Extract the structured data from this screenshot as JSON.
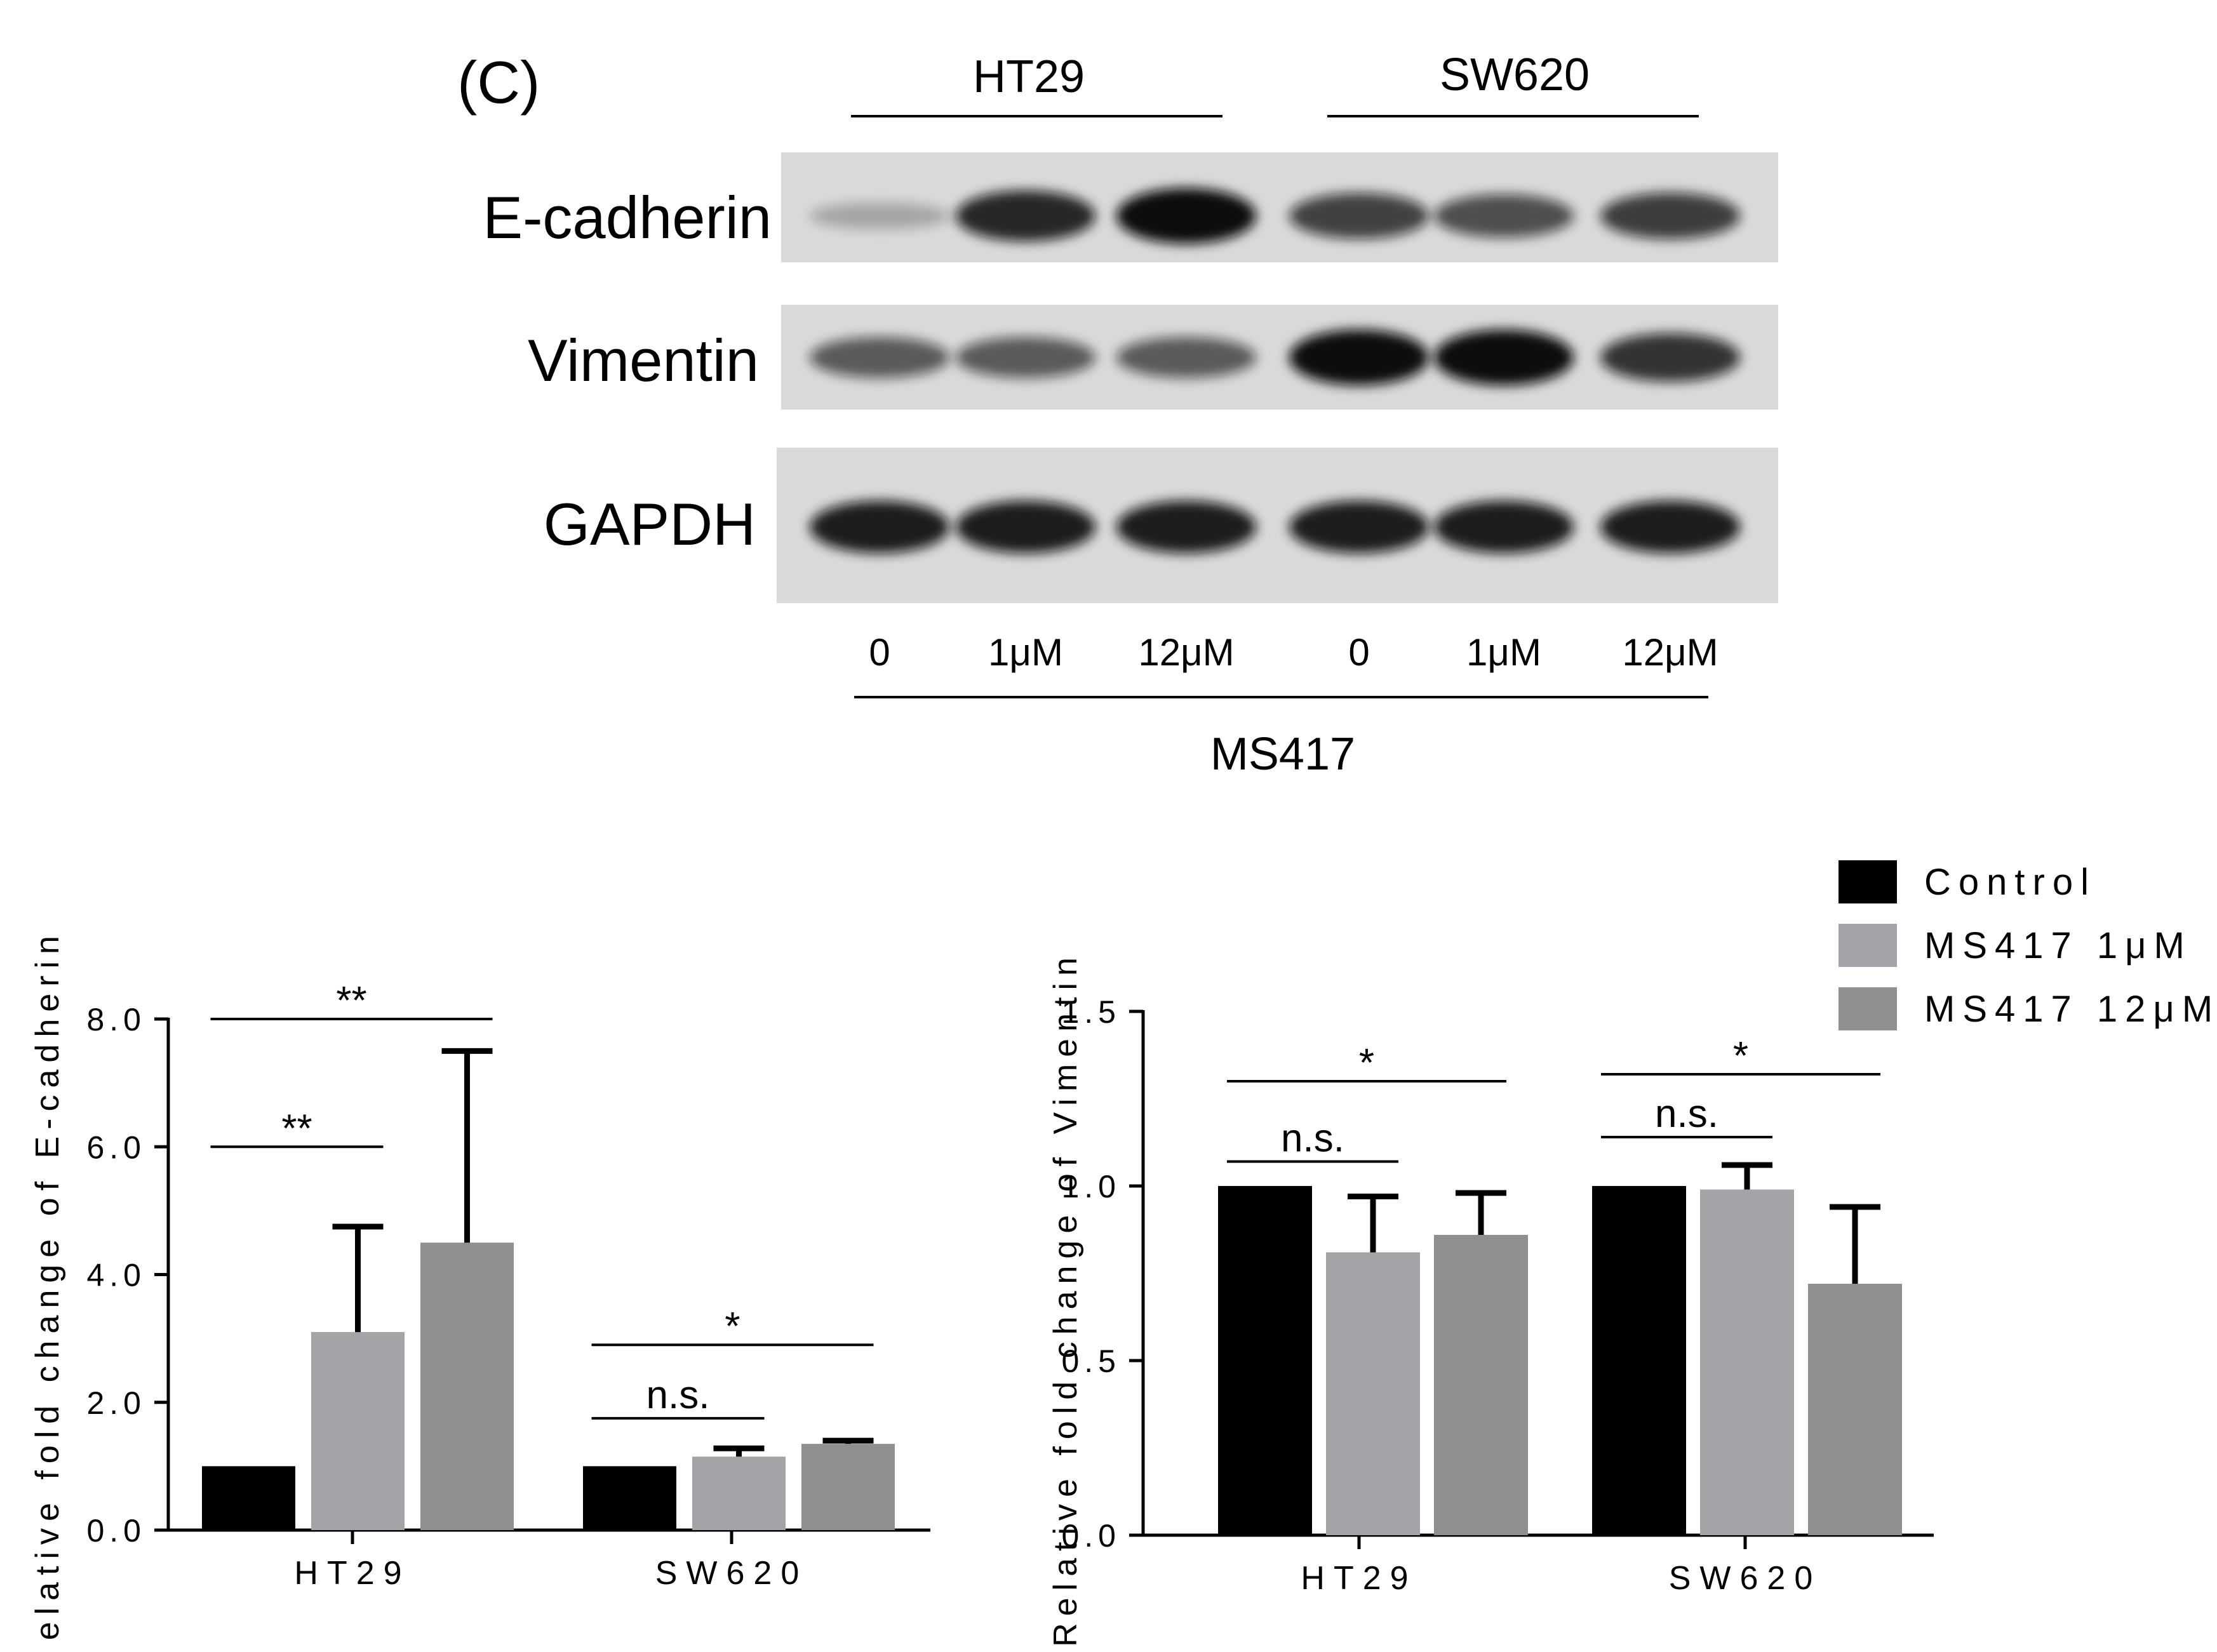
{
  "panel_label": "(C)",
  "blot": {
    "cell_lines": [
      "HT29",
      "SW620"
    ],
    "rows": [
      {
        "name": "E-cadherin",
        "bands": [
          0.12,
          0.85,
          1.0,
          0.7,
          0.62,
          0.72
        ]
      },
      {
        "name": "Vimentin",
        "bands": [
          0.55,
          0.55,
          0.55,
          1.0,
          1.0,
          0.78
        ]
      },
      {
        "name": "GAPDH",
        "bands": [
          0.9,
          0.9,
          0.9,
          0.9,
          0.9,
          0.9
        ]
      }
    ],
    "lanes": [
      "0",
      "1μM",
      "12μM",
      "0",
      "1μM",
      "12μM"
    ],
    "treatment": "MS417"
  },
  "legend": [
    {
      "label": "Control",
      "color": "#000000"
    },
    {
      "label": "MS417 1μM",
      "color": "#a4a4a8"
    },
    {
      "label": "MS417 12μM",
      "color": "#8f8f92"
    }
  ],
  "chart_data": [
    {
      "type": "bar",
      "ylabel": "Relative fold change of E-cadherin",
      "categories": [
        "HT29",
        "SW620"
      ],
      "ylim": [
        0,
        8
      ],
      "yticks": [
        "0.0",
        "2.0",
        "4.0",
        "6.0",
        "8.0"
      ],
      "series": [
        {
          "name": "Control",
          "values": [
            1.0,
            1.0
          ],
          "errors": [
            0,
            0
          ]
        },
        {
          "name": "MS417 1μM",
          "values": [
            3.1,
            1.15
          ],
          "errors": [
            1.65,
            0.13
          ]
        },
        {
          "name": "MS417 12μM",
          "values": [
            4.5,
            1.35
          ],
          "errors": [
            3.0,
            0.05
          ]
        }
      ],
      "significance": [
        {
          "category": "HT29",
          "from": 0,
          "to": 1,
          "level": 6.0,
          "label": "**"
        },
        {
          "category": "HT29",
          "from": 0,
          "to": 2,
          "level": 8.0,
          "label": "**"
        },
        {
          "category": "SW620",
          "from": 0,
          "to": 1,
          "level": 1.75,
          "label": "n.s."
        },
        {
          "category": "SW620",
          "from": 0,
          "to": 2,
          "level": 2.9,
          "label": "*"
        }
      ]
    },
    {
      "type": "bar",
      "ylabel": "Relative fold change of Vimentin",
      "categories": [
        "HT29",
        "SW620"
      ],
      "ylim": [
        0,
        1.5
      ],
      "yticks": [
        "0.0",
        "0.5",
        "1.0",
        "1.5"
      ],
      "series": [
        {
          "name": "Control",
          "values": [
            1.0,
            1.0
          ],
          "errors": [
            0,
            0
          ]
        },
        {
          "name": "MS417 1μM",
          "values": [
            0.81,
            0.99
          ],
          "errors": [
            0.16,
            0.07
          ]
        },
        {
          "name": "MS417 12μM",
          "values": [
            0.86,
            0.72
          ],
          "errors": [
            0.12,
            0.22
          ]
        }
      ],
      "significance": [
        {
          "category": "HT29",
          "from": 0,
          "to": 1,
          "level": 1.07,
          "label": "n.s."
        },
        {
          "category": "HT29",
          "from": 0,
          "to": 2,
          "level": 1.3,
          "label": "*"
        },
        {
          "category": "SW620",
          "from": 0,
          "to": 1,
          "level": 1.14,
          "label": "n.s."
        },
        {
          "category": "SW620",
          "from": 0,
          "to": 2,
          "level": 1.32,
          "label": "*"
        }
      ]
    }
  ]
}
